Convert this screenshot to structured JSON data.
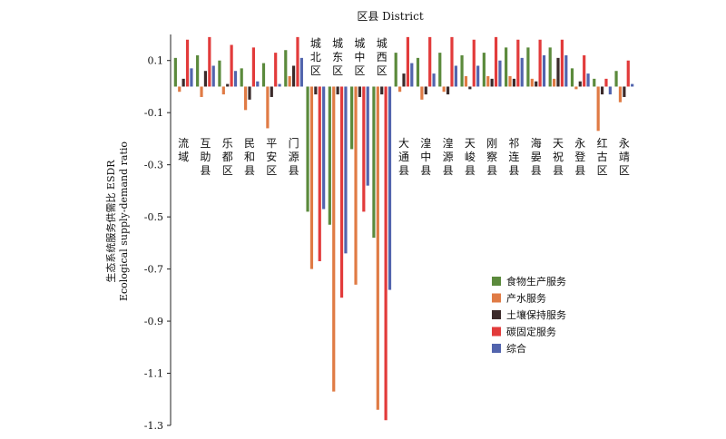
{
  "chart_data": {
    "type": "bar",
    "title": "区县 District",
    "ylabel": "生态系统服务供需比 ESDR",
    "ylabel_en": "Ecological supply-demand ratio",
    "ylim": [
      -1.3,
      0.2
    ],
    "yticks": [
      0.1,
      -0.1,
      -0.3,
      -0.5,
      -0.7,
      -0.9,
      -1.1,
      -1.3
    ],
    "ytick_labels": [
      "0.1",
      "-0.1",
      "-0.3",
      "-0.5",
      "-0.7",
      "-0.9",
      "-1.1",
      "-1.3"
    ],
    "legend_position": "bottom-right",
    "categories": [
      "流域",
      "互助县",
      "乐都区",
      "民和县",
      "平安区",
      "门源县",
      "城北区",
      "城东区",
      "城中区",
      "城西区",
      "大通县",
      "湟中县",
      "湟源县",
      "天峻县",
      "刚察县",
      "祁连县",
      "海晏县",
      "天祝县",
      "永登县",
      "红古区",
      "永靖区"
    ],
    "series": [
      {
        "name": "食物生产服务",
        "color": "#5b8a3c",
        "values": [
          0.11,
          0.12,
          0.1,
          0.07,
          0.09,
          0.14,
          -0.48,
          -0.53,
          -0.24,
          -0.58,
          0.13,
          0.11,
          0.13,
          0.12,
          0.13,
          0.15,
          0.15,
          0.15,
          0.07,
          0.03,
          0.06
        ]
      },
      {
        "name": "产水服务",
        "color": "#e07b45",
        "values": [
          -0.02,
          -0.04,
          -0.03,
          -0.09,
          -0.16,
          0.04,
          -0.7,
          -1.17,
          -0.76,
          -1.24,
          -0.02,
          -0.05,
          -0.02,
          0.04,
          0.04,
          0.04,
          0.03,
          0.03,
          -0.01,
          -0.17,
          -0.06
        ]
      },
      {
        "name": "土壤保持服务",
        "color": "#3b2a2a",
        "values": [
          0.03,
          0.06,
          0.01,
          -0.05,
          -0.04,
          0.08,
          -0.03,
          -0.03,
          -0.04,
          -0.03,
          0.05,
          -0.03,
          -0.03,
          -0.01,
          0.03,
          0.03,
          0.02,
          0.11,
          0.02,
          -0.03,
          -0.04
        ]
      },
      {
        "name": "碳固定服务",
        "color": "#e23b3b",
        "values": [
          0.18,
          0.19,
          0.16,
          0.15,
          0.13,
          0.19,
          -0.67,
          -0.81,
          -0.48,
          -1.28,
          0.19,
          0.19,
          0.19,
          0.18,
          0.19,
          0.18,
          0.18,
          0.18,
          0.12,
          0.03,
          0.1
        ]
      },
      {
        "name": "综合",
        "color": "#5264ad",
        "values": [
          0.07,
          0.08,
          0.06,
          0.02,
          0.01,
          0.11,
          -0.47,
          -0.64,
          -0.38,
          -0.78,
          0.09,
          0.05,
          0.08,
          0.08,
          0.1,
          0.11,
          0.12,
          0.12,
          0.05,
          -0.03,
          0.01
        ]
      }
    ]
  }
}
